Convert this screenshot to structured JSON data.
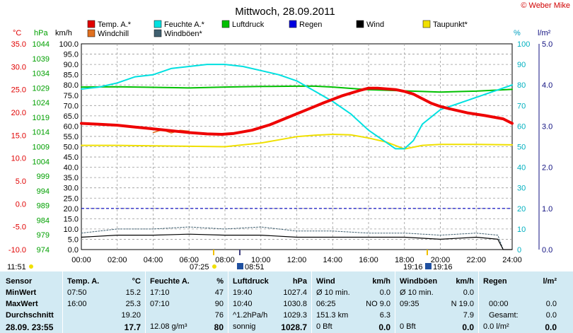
{
  "chart_data": {
    "type": "line",
    "title": "Mittwoch, 28.09.2011",
    "copyright": "© Weber Mike",
    "x_ticks": [
      "00:00",
      "02:00",
      "04:00",
      "06:00",
      "08:00",
      "10:00",
      "12:00",
      "14:00",
      "16:00",
      "18:00",
      "20:00",
      "22:00",
      "24:00"
    ],
    "axes": {
      "temp": {
        "unit": "°C",
        "ticks": [
          "35.0",
          "30.0",
          "25.0",
          "20.0",
          "15.0",
          "10.0",
          "5.0",
          "0.0",
          "-5.0",
          "-10.0"
        ],
        "ylim": [
          -10,
          35
        ],
        "color": "#e00000"
      },
      "pressure": {
        "unit": "hPa",
        "ticks": [
          "1044",
          "1039",
          "1034",
          "1029",
          "1024",
          "1019",
          "1014",
          "1009",
          "1004",
          "999",
          "994",
          "989",
          "984",
          "979",
          "974"
        ],
        "ylim": [
          974,
          1044
        ],
        "color": "#00a000"
      },
      "wind": {
        "unit": "km/h",
        "ticks": [
          "100.0",
          "95.0",
          "90.0",
          "85.0",
          "80.0",
          "75.0",
          "70.0",
          "65.0",
          "60.0",
          "55.0",
          "50.0",
          "45.0",
          "40.0",
          "35.0",
          "30.0",
          "25.0",
          "20.0",
          "15.0",
          "10.0",
          "5.0",
          "0.0"
        ],
        "ylim": [
          0,
          100
        ],
        "color": "#000000"
      },
      "humidity": {
        "unit": "%",
        "ticks": [
          "100",
          "90",
          "80",
          "70",
          "60",
          "50",
          "40",
          "30",
          "20",
          "10",
          "0"
        ],
        "ylim": [
          0,
          100
        ],
        "color": "#00c8d0"
      },
      "rain": {
        "unit": "l/m²",
        "ticks": [
          "5.0",
          "4.0",
          "3.0",
          "2.0",
          "1.0",
          "0.0"
        ],
        "ylim": [
          0,
          5
        ],
        "color": "#101080"
      }
    },
    "legend": [
      {
        "name": "Temp. A.*",
        "color": "#e00000"
      },
      {
        "name": "Feuchte A.*",
        "color": "#00e0e0"
      },
      {
        "name": "Luftdruck",
        "color": "#00c000"
      },
      {
        "name": "Regen",
        "color": "#0000e0"
      },
      {
        "name": "Wind",
        "color": "#000000"
      },
      {
        "name": "Taupunkt*",
        "color": "#f0e000"
      },
      {
        "name": "Windchill",
        "color": "#e07020"
      },
      {
        "name": "Windböen*",
        "color": "#406070"
      }
    ],
    "series": [
      {
        "name": "Temp. A.*",
        "axis": "temp",
        "color": "#ee0000",
        "x": [
          0,
          1,
          2,
          3,
          4,
          5,
          6,
          7,
          7.83,
          8.5,
          9.5,
          10.5,
          11.5,
          12.5,
          13.5,
          14.5,
          15.5,
          16,
          16.5,
          17.5,
          18,
          18.5,
          19.5,
          20,
          20.5,
          21.5,
          22.5,
          23.5,
          24
        ],
        "y": [
          17.6,
          17.4,
          17.2,
          16.8,
          16.4,
          16.0,
          15.6,
          15.3,
          15.2,
          15.4,
          16.1,
          17.3,
          18.9,
          20.5,
          22.1,
          23.6,
          24.8,
          25.3,
          25.3,
          25.0,
          24.6,
          24.0,
          22.0,
          21.3,
          20.8,
          19.9,
          19.3,
          18.6,
          17.6
        ]
      },
      {
        "name": "Windchill",
        "axis": "temp",
        "color": "#e07020",
        "x": [
          4,
          4.5,
          5,
          5.5,
          6
        ],
        "y": [
          15.6,
          16.2,
          15.5,
          16.1,
          15.9
        ]
      },
      {
        "name": "Feuchte A.*",
        "axis": "humidity",
        "color": "#00e0e0",
        "x": [
          0,
          1,
          2,
          3,
          4,
          5,
          6,
          7,
          7.17,
          8,
          9,
          10,
          11,
          12,
          13,
          14,
          15,
          16,
          17,
          17.5,
          18,
          18.5,
          19,
          20,
          21,
          22,
          23,
          24
        ],
        "y": [
          78,
          79,
          81,
          84,
          85,
          88,
          89,
          90,
          90,
          90,
          89,
          87,
          85,
          82,
          77,
          72,
          66,
          58,
          52,
          49,
          49,
          53,
          61,
          68,
          71,
          74,
          77,
          80
        ]
      },
      {
        "name": "Luftdruck",
        "axis": "pressure",
        "x": [
          0,
          2,
          4,
          6,
          8,
          10,
          12,
          13,
          14,
          16,
          18,
          20,
          22,
          24
        ],
        "y": [
          1029.3,
          1029.4,
          1029.2,
          1029.0,
          1029.3,
          1029.5,
          1029.6,
          1029.6,
          1029.3,
          1028.4,
          1028.0,
          1027.6,
          1027.9,
          1028.5
        ],
        "color": "#00c000"
      },
      {
        "name": "Taupunkt*",
        "axis": "temp",
        "color": "#f0e000",
        "x": [
          0,
          2,
          4,
          6,
          8,
          10,
          11,
          12,
          13,
          14,
          15,
          16,
          17,
          18,
          19,
          20,
          22,
          24
        ],
        "y": [
          12.8,
          12.8,
          12.7,
          12.6,
          12.5,
          13.3,
          14.0,
          14.7,
          15.0,
          15.2,
          15.1,
          14.4,
          13.5,
          12.0,
          12.8,
          13.0,
          13.0,
          12.9
        ],
        "_note": ""
      },
      {
        "name": "Wind",
        "axis": "wind",
        "color": "#000000",
        "x": [
          0,
          2,
          4,
          6,
          8,
          10,
          12,
          14,
          16,
          18,
          20,
          22,
          23.2,
          23.5,
          24
        ],
        "y": [
          6,
          7,
          7,
          7.5,
          7,
          7,
          6,
          6,
          6,
          6,
          5,
          6,
          5,
          0,
          0
        ]
      },
      {
        "name": "Windböen*",
        "axis": "wind",
        "color": "#406070",
        "x": [
          0,
          2,
          4,
          6,
          8,
          10,
          12,
          14,
          16,
          18,
          20,
          22,
          23.2,
          23.5,
          24
        ],
        "y": [
          8,
          10,
          10,
          11,
          10,
          11,
          9,
          9,
          8,
          8,
          7,
          8,
          7,
          0,
          0
        ]
      }
    ],
    "rain_line": {
      "value": 1.0,
      "axis": "rain",
      "color": "#0000c0"
    },
    "below_axis": {
      "left_time": "11:51",
      "sunrise": "07:25",
      "solar_noon": "08:51",
      "sunset": "19:16",
      "moonset": "19:16"
    }
  },
  "panel": {
    "sensor": {
      "header": "Sensor",
      "rows": [
        "MinWert",
        "MaxWert",
        "Durchschnitt"
      ],
      "current": "28.09. 23:55"
    },
    "temp": {
      "header": "Temp. A.",
      "unit": "°C",
      "min_time": "07:50",
      "min": "15.2",
      "max_time": "16:00",
      "max": "25.3",
      "avg": "19.20",
      "current": "17.7"
    },
    "feuchte": {
      "header": "Feuchte A.",
      "unit": "%",
      "min_time": "17:10",
      "min": "47",
      "max_time": "07:10",
      "max": "90",
      "avg": "76",
      "abs": "12.08 g/m³",
      "current": "80"
    },
    "luftdruck": {
      "header": "Luftdruck",
      "unit": "hPa",
      "min_time": "19:40",
      "min": "1027.4",
      "max_time": "10:40",
      "max": "1030.8",
      "trend": "^1.2hPa/h",
      "avg": "1029.3",
      "forecast": "sonnig",
      "current": "1028.7"
    },
    "wind": {
      "header": "Wind",
      "unit": "km/h",
      "r1a": "Ø 10 min.",
      "r1b": "0.0",
      "r2a": "06:25",
      "r2b": "NO 9.0",
      "r3a": "151.3 km",
      "r3b": "6.3",
      "r4a": "0 Bft",
      "r4b": "0.0"
    },
    "windboeen": {
      "header": "Windböen",
      "unit": "km/h",
      "r1a": "Ø 10 min.",
      "r1b": "0.0",
      "r2a": "09:35",
      "r2b": "N 19.0",
      "r3b": "7.9",
      "r4a": "0 Bft",
      "r4b": "0.0"
    },
    "regen": {
      "header": "Regen",
      "unit": "l/m²",
      "r2a": "00:00",
      "r2b": "0.0",
      "r3a": "Gesamt:",
      "r3b": "0.0",
      "r4a": "0.0 l/m²",
      "r4b": "0.0"
    }
  }
}
